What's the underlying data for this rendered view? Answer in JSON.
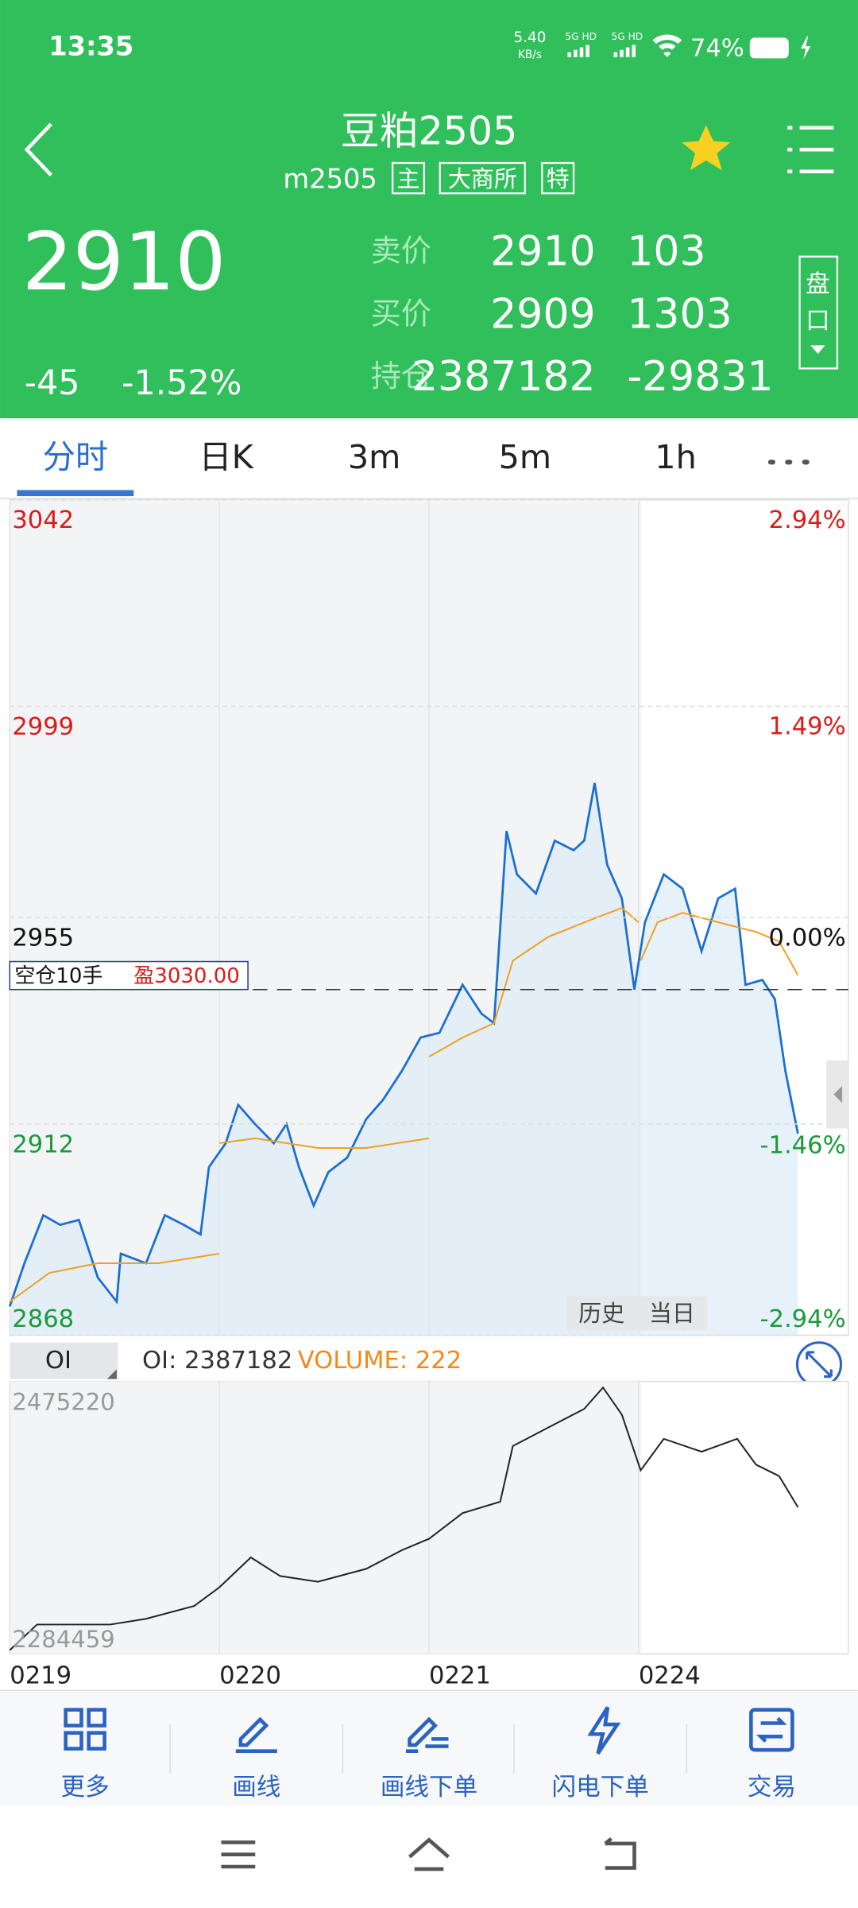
{
  "status_bar": {
    "time": "13:35",
    "net_speed": "5.40",
    "net_unit": "KB/s",
    "signal_1": "5G HD",
    "signal_2": "5G HD",
    "battery": "74%"
  },
  "header": {
    "title": "豆粕2505",
    "code": "m2505",
    "tags": [
      "主",
      "大商所",
      "特"
    ]
  },
  "quote": {
    "price": "2910",
    "change": "-45",
    "change_pct": "-1.52%",
    "rows": [
      {
        "label": "卖价",
        "price": "2910",
        "qty": "103"
      },
      {
        "label": "买价",
        "price": "2909",
        "qty": "1303"
      },
      {
        "label": "持仓",
        "price": "2387182",
        "qty": "-29831"
      }
    ],
    "side_button": [
      "盘",
      "口"
    ]
  },
  "tabs": [
    "分时",
    "日K",
    "3m",
    "5m",
    "1h"
  ],
  "chart_buttons": [
    "历史",
    "当日"
  ],
  "chart_data": [
    {
      "type": "line",
      "xlim": [
        0,
        4
      ],
      "ylim": [
        2868,
        3042
      ],
      "yticks": [
        3042,
        2999,
        2955,
        2912,
        2868
      ],
      "y2lim": [
        -2.94,
        2.94
      ],
      "y2ticks": [
        {
          "value": 2.94,
          "label": "2.94%"
        },
        {
          "value": 1.49,
          "label": "1.49%"
        },
        {
          "value": 0,
          "label": "0.00%"
        },
        {
          "value": -1.46,
          "label": "-1.46%"
        },
        {
          "value": -2.94,
          "label": "-2.94%"
        }
      ],
      "position": {
        "label": "空仓10手",
        "pnl": "盈3030.00",
        "price": 2940
      },
      "series": [
        {
          "color": "#1b6fd0",
          "x": [
            0,
            0.07,
            0.16,
            0.24,
            0.33,
            0.42,
            0.51,
            0.53,
            0.65,
            0.74,
            0.83,
            0.91,
            0.95,
            1.03,
            1.09,
            1.17,
            1.26,
            1.32,
            1.38,
            1.45,
            1.52,
            1.61,
            1.7,
            1.78,
            1.87,
            1.96,
            2.05,
            2.16,
            2.25,
            2.31,
            2.37,
            2.42,
            2.51,
            2.6,
            2.69,
            2.74,
            2.79,
            2.85,
            2.92,
            2.98,
            3.03,
            3.12,
            3.21,
            3.3,
            3.38,
            3.46,
            3.51,
            3.59,
            3.65,
            3.7,
            3.76
          ],
          "values": [
            2874,
            2883,
            2893,
            2891,
            2892,
            2880,
            2875,
            2885,
            2883,
            2893,
            2891,
            2889,
            2903,
            2908,
            2916,
            2912,
            2908,
            2912,
            2903,
            2895,
            2902,
            2905,
            2913,
            2917,
            2923,
            2930,
            2931,
            2941,
            2935,
            2933,
            2973,
            2964,
            2960,
            2971,
            2969,
            2971,
            2983,
            2966,
            2959,
            2940,
            2954,
            2964,
            2961,
            2948,
            2959,
            2961,
            2941,
            2942,
            2938,
            2923,
            2910
          ]
        },
        {
          "color": "#f0a020",
          "x": [
            0,
            0.19,
            0.42,
            0.71,
            1.0,
            null,
            1.0,
            1.17,
            1.47,
            1.7,
            2.0,
            null,
            2.0,
            2.16,
            2.31,
            2.4,
            2.57,
            2.8,
            2.92,
            3.0,
            null,
            3.01,
            3.09,
            3.21,
            3.38,
            3.56,
            3.67,
            3.76
          ],
          "values": [
            2875,
            2881,
            2883,
            2883,
            2885,
            null,
            2908,
            2909,
            2907,
            2907,
            2909,
            null,
            2926,
            2930,
            2933,
            2946,
            2951,
            2955,
            2957,
            2954,
            null,
            2946,
            2954,
            2956,
            2954,
            2952,
            2950,
            2943
          ]
        }
      ]
    },
    {
      "type": "line",
      "indicator": "OI",
      "oi_label": "OI: 2387182",
      "volume_label": "VOLUME: 222",
      "xlim": [
        0,
        4
      ],
      "xticks": [
        {
          "value": 0,
          "label": "0219"
        },
        {
          "value": 1,
          "label": "0220"
        },
        {
          "value": 2,
          "label": "0221"
        },
        {
          "value": 3,
          "label": "0224"
        }
      ],
      "ylim": [
        2284459,
        2475220
      ],
      "yticks": [
        2475220,
        2284459
      ],
      "series": [
        {
          "color": "#222222",
          "x": [
            0,
            0.13,
            0.3,
            0.48,
            0.65,
            0.88,
            1.0,
            1.15,
            1.29,
            1.47,
            1.7,
            1.87,
            2.0,
            2.16,
            2.34,
            2.4,
            2.57,
            2.74,
            2.83,
            2.92,
            3.01,
            3.12,
            3.3,
            3.47,
            3.56,
            3.67,
            3.76
          ],
          "values": [
            2287000,
            2305000,
            2305000,
            2305000,
            2309000,
            2318000,
            2331000,
            2352000,
            2339000,
            2335000,
            2344000,
            2357000,
            2365000,
            2383000,
            2391000,
            2430000,
            2443000,
            2456000,
            2471000,
            2452000,
            2413000,
            2435000,
            2426000,
            2435000,
            2417000,
            2409000,
            2387182
          ]
        }
      ]
    }
  ],
  "toolbar": [
    "更多",
    "画线",
    "画线下单",
    "闪电下单",
    "交易"
  ]
}
